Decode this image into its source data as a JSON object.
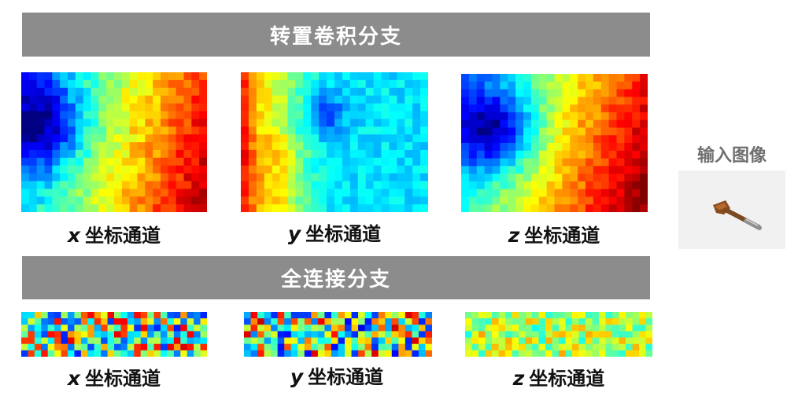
{
  "conv_branch": {
    "title": "转置卷积分支",
    "channels": [
      {
        "var": "x",
        "label": "坐标通道"
      },
      {
        "var": "y",
        "label": "坐标通道"
      },
      {
        "var": "z",
        "label": "坐标通道"
      }
    ]
  },
  "fc_branch": {
    "title": "全连接分支",
    "channels": [
      {
        "var": "x",
        "label": "坐标通道"
      },
      {
        "var": "y",
        "label": "坐标通道"
      },
      {
        "var": "z",
        "label": "坐标通道"
      }
    ]
  },
  "input_image": {
    "title": "输入图像",
    "icon": "knife-icon"
  },
  "colormap": "jet",
  "colors": {
    "banner": "#8c8c8c",
    "banner_text": "#ffffff"
  }
}
